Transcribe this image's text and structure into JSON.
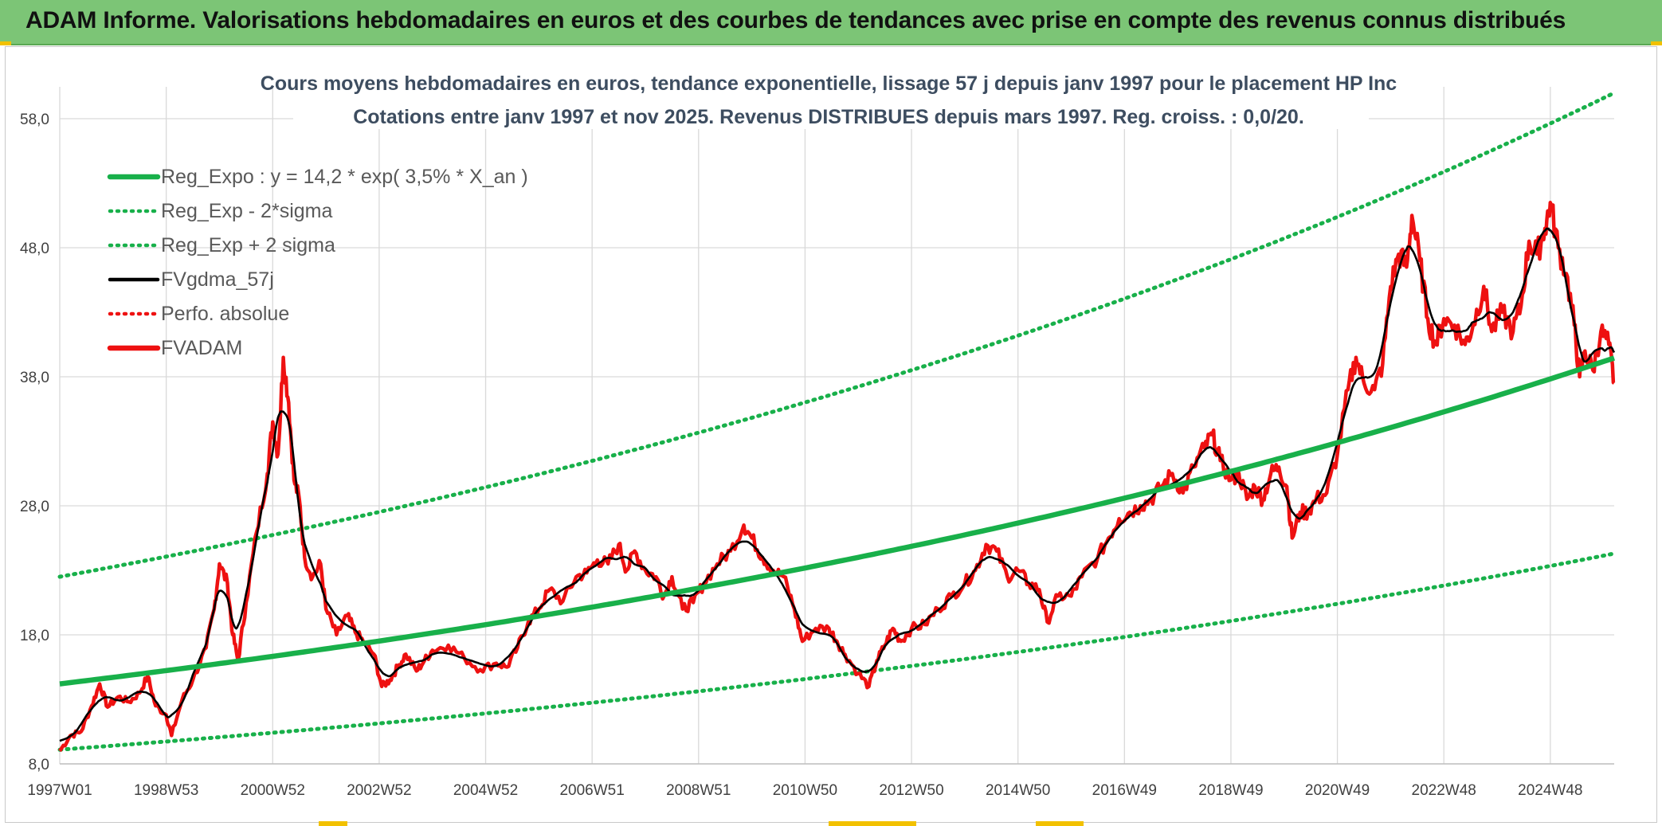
{
  "header": {
    "title": "ADAM Informe. Valorisations hebdomadaires en euros et des courbes de tendances avec prise en compte des revenus connus distribués"
  },
  "colors": {
    "header_bg": "#7cc576",
    "green": "#18b04a",
    "red": "#ee1111",
    "black": "#000000",
    "grid": "#d9d9d9"
  },
  "chart_data": {
    "type": "line",
    "title_lines": [
      "Cours moyens hebdomadaires en euros, tendance exponentielle, lissage 57 j depuis janv 1997 pour le placement HP Inc",
      "Cotations entre janv 1997 et nov 2025. Revenus DISTRIBUES depuis mars 1997. Reg. croiss. : 0,0/20."
    ],
    "y_ticks": [
      "58,0",
      "48,0",
      "38,0",
      "28,0",
      "18,0",
      "8,0"
    ],
    "y_tick_values": [
      58,
      48,
      38,
      28,
      18,
      8
    ],
    "ylim": [
      8,
      58
    ],
    "x_ticks": [
      "1997W01",
      "1998W53",
      "2000W52",
      "2002W52",
      "2004W52",
      "2006W51",
      "2008W51",
      "2010W50",
      "2012W50",
      "2014W50",
      "2016W49",
      "2018W49",
      "2020W49",
      "2022W48",
      "2024W48"
    ],
    "x_tick_years": [
      1997.0,
      1999.0,
      2001.0,
      2003.0,
      2005.0,
      2007.0,
      2009.0,
      2011.0,
      2013.0,
      2015.0,
      2017.0,
      2019.0,
      2021.0,
      2023.0,
      2025.0
    ],
    "xlim": [
      1997.0,
      2026.2
    ],
    "legend": [
      {
        "label": "Reg_Expo : y = 14,2 * exp( 3,5% *  X_an )",
        "style": "solid-thick",
        "color": "#18b04a"
      },
      {
        "label": "Reg_Exp - 2*sigma",
        "style": "dotted",
        "color": "#18b04a"
      },
      {
        "label": "Reg_Exp + 2 sigma",
        "style": "dotted",
        "color": "#18b04a"
      },
      {
        "label": "FVgdma_57j",
        "style": "solid",
        "color": "#000000"
      },
      {
        "label": "Perfo. absolue",
        "style": "dotted",
        "color": "#ee1111"
      },
      {
        "label": "FVADAM",
        "style": "solid-thick",
        "color": "#ee1111"
      }
    ],
    "series": {
      "reg_expo": {
        "name": "Reg_Expo",
        "a": 14.2,
        "rate": 0.035
      },
      "reg_minus": {
        "name": "Reg_Exp - 2*sigma",
        "start": 9.1,
        "end": 24.3
      },
      "reg_plus": {
        "name": "Reg_Exp + 2 sigma",
        "start": 22.5,
        "end": 60.0,
        "cap": 60.0
      },
      "fvadam": {
        "name": "FVADAM",
        "points": [
          [
            1997.0,
            9.0
          ],
          [
            1997.2,
            10.2
          ],
          [
            1997.4,
            10.5
          ],
          [
            1997.6,
            12.5
          ],
          [
            1997.75,
            14.2
          ],
          [
            1997.9,
            12.4
          ],
          [
            1998.1,
            13.2
          ],
          [
            1998.3,
            12.8
          ],
          [
            1998.5,
            13.5
          ],
          [
            1998.65,
            14.8
          ],
          [
            1998.8,
            12.5
          ],
          [
            1999.0,
            11.8
          ],
          [
            1999.1,
            10.2
          ],
          [
            1999.3,
            13.0
          ],
          [
            1999.5,
            14.5
          ],
          [
            1999.75,
            17.0
          ],
          [
            1999.9,
            20.0
          ],
          [
            2000.0,
            23.5
          ],
          [
            2000.15,
            22.0
          ],
          [
            2000.25,
            18.0
          ],
          [
            2000.35,
            16.0
          ],
          [
            2000.5,
            20.5
          ],
          [
            2000.7,
            26.0
          ],
          [
            2000.9,
            30.5
          ],
          [
            2001.0,
            34.5
          ],
          [
            2001.1,
            32.0
          ],
          [
            2001.2,
            39.5
          ],
          [
            2001.3,
            36.0
          ],
          [
            2001.4,
            30.0
          ],
          [
            2001.5,
            28.5
          ],
          [
            2001.6,
            24.0
          ],
          [
            2001.75,
            22.5
          ],
          [
            2001.9,
            23.5
          ],
          [
            2002.0,
            20.0
          ],
          [
            2002.2,
            18.0
          ],
          [
            2002.4,
            19.5
          ],
          [
            2002.55,
            18.2
          ],
          [
            2002.7,
            17.5
          ],
          [
            2002.9,
            16.5
          ],
          [
            2003.05,
            14.0
          ],
          [
            2003.2,
            14.5
          ],
          [
            2003.35,
            15.5
          ],
          [
            2003.5,
            16.5
          ],
          [
            2003.7,
            15.2
          ],
          [
            2003.85,
            16.0
          ],
          [
            2004.0,
            16.8
          ],
          [
            2004.3,
            17.2
          ],
          [
            2004.6,
            16.2
          ],
          [
            2004.9,
            15.3
          ],
          [
            2005.2,
            15.8
          ],
          [
            2005.4,
            15.5
          ],
          [
            2005.6,
            17.0
          ],
          [
            2005.8,
            19.0
          ],
          [
            2006.0,
            20.0
          ],
          [
            2006.2,
            21.5
          ],
          [
            2006.45,
            20.6
          ],
          [
            2006.7,
            22.5
          ],
          [
            2006.9,
            22.8
          ],
          [
            2007.1,
            23.8
          ],
          [
            2007.3,
            23.5
          ],
          [
            2007.5,
            25.0
          ],
          [
            2007.65,
            23.0
          ],
          [
            2007.8,
            24.5
          ],
          [
            2008.0,
            23.0
          ],
          [
            2008.2,
            22.5
          ],
          [
            2008.35,
            21.0
          ],
          [
            2008.5,
            22.5
          ],
          [
            2008.7,
            20.0
          ],
          [
            2008.9,
            20.5
          ],
          [
            2009.1,
            22.0
          ],
          [
            2009.35,
            23.5
          ],
          [
            2009.6,
            24.5
          ],
          [
            2009.85,
            26.5
          ],
          [
            2010.0,
            25.5
          ],
          [
            2010.2,
            24.0
          ],
          [
            2010.4,
            23.0
          ],
          [
            2010.6,
            22.5
          ],
          [
            2010.8,
            20.0
          ],
          [
            2010.95,
            17.5
          ],
          [
            2011.2,
            18.5
          ],
          [
            2011.45,
            18.5
          ],
          [
            2011.6,
            17.5
          ],
          [
            2011.75,
            16.5
          ],
          [
            2012.0,
            15.0
          ],
          [
            2012.2,
            14.0
          ],
          [
            2012.35,
            16.0
          ],
          [
            2012.5,
            17.2
          ],
          [
            2012.65,
            18.5
          ],
          [
            2012.8,
            17.5
          ],
          [
            2013.0,
            18.5
          ],
          [
            2013.25,
            18.8
          ],
          [
            2013.5,
            20.0
          ],
          [
            2013.75,
            21.0
          ],
          [
            2014.0,
            22.0
          ],
          [
            2014.2,
            23.0
          ],
          [
            2014.4,
            25.0
          ],
          [
            2014.6,
            24.5
          ],
          [
            2014.8,
            22.5
          ],
          [
            2015.0,
            23.0
          ],
          [
            2015.2,
            22.0
          ],
          [
            2015.4,
            21.5
          ],
          [
            2015.55,
            19.0
          ],
          [
            2015.75,
            21.0
          ],
          [
            2016.0,
            21.0
          ],
          [
            2016.2,
            22.5
          ],
          [
            2016.5,
            24.0
          ],
          [
            2016.7,
            25.5
          ],
          [
            2016.9,
            27.0
          ],
          [
            2017.1,
            27.5
          ],
          [
            2017.3,
            28.0
          ],
          [
            2017.5,
            28.5
          ],
          [
            2017.7,
            29.5
          ],
          [
            2017.9,
            30.5
          ],
          [
            2018.1,
            29.0
          ],
          [
            2018.3,
            31.0
          ],
          [
            2018.5,
            32.5
          ],
          [
            2018.65,
            33.5
          ],
          [
            2018.8,
            31.5
          ],
          [
            2019.0,
            30.0
          ],
          [
            2019.15,
            30.5
          ],
          [
            2019.3,
            28.5
          ],
          [
            2019.45,
            29.5
          ],
          [
            2019.6,
            28.5
          ],
          [
            2019.75,
            30.5
          ],
          [
            2019.9,
            31.0
          ],
          [
            2020.05,
            29.5
          ],
          [
            2020.15,
            25.5
          ],
          [
            2020.3,
            27.5
          ],
          [
            2020.45,
            27.5
          ],
          [
            2020.6,
            28.5
          ],
          [
            2020.8,
            29.0
          ],
          [
            2021.0,
            32.0
          ],
          [
            2021.2,
            37.0
          ],
          [
            2021.35,
            39.5
          ],
          [
            2021.5,
            37.5
          ],
          [
            2021.7,
            37.0
          ],
          [
            2021.85,
            39.0
          ],
          [
            2022.0,
            45.0
          ],
          [
            2022.15,
            47.5
          ],
          [
            2022.3,
            46.5
          ],
          [
            2022.4,
            50.5
          ],
          [
            2022.55,
            47.0
          ],
          [
            2022.7,
            42.5
          ],
          [
            2022.85,
            40.5
          ],
          [
            2023.0,
            42.5
          ],
          [
            2023.2,
            42.0
          ],
          [
            2023.4,
            40.5
          ],
          [
            2023.55,
            42.0
          ],
          [
            2023.75,
            45.0
          ],
          [
            2023.9,
            41.5
          ],
          [
            2024.1,
            43.0
          ],
          [
            2024.3,
            41.5
          ],
          [
            2024.45,
            43.5
          ],
          [
            2024.6,
            48.5
          ],
          [
            2024.75,
            47.5
          ],
          [
            2024.9,
            49.5
          ],
          [
            2025.0,
            51.5
          ],
          [
            2025.15,
            48.0
          ],
          [
            2025.3,
            46.0
          ],
          [
            2025.45,
            42.0
          ],
          [
            2025.55,
            38.0
          ],
          [
            2025.65,
            40.0
          ],
          [
            2025.8,
            38.5
          ],
          [
            2025.95,
            41.5
          ],
          [
            2026.1,
            40.5
          ],
          [
            2026.2,
            37.5
          ]
        ]
      },
      "fvgdma_57j": {
        "name": "FVgdma_57j",
        "smoothing_window": 9
      }
    }
  }
}
